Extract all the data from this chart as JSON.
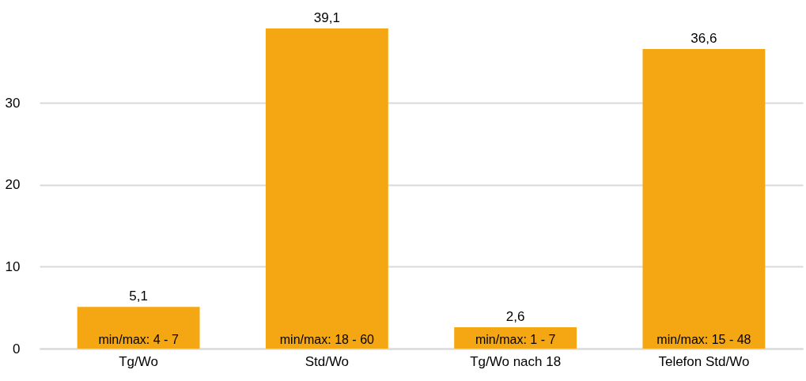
{
  "chart_data": {
    "type": "bar",
    "categories": [
      "Tg/Wo",
      "Std/Wo",
      "Tg/Wo nach 18",
      "Telefon Std/Wo"
    ],
    "values": [
      5.1,
      39.1,
      2.6,
      36.6
    ],
    "value_labels": [
      "5,1",
      "39,1",
      "2,6",
      "36,6"
    ],
    "color": "#f4a712",
    "ylim": [
      0,
      39.1
    ],
    "yticks": [
      0,
      10,
      20,
      30
    ],
    "grid": "y",
    "annotations": [
      {
        "text": "min/max: 4 - 7",
        "x": "Tg/Wo",
        "y": 0
      },
      {
        "text": "min/max: 18 - 60",
        "x": "Std/Wo",
        "y": 0
      },
      {
        "text": "min/max: 1 - 7",
        "x": "Tg/Wo nach 18",
        "y": 0
      },
      {
        "text": "min/max: 15 - 48",
        "x": "Telefon Std/Wo",
        "y": 0
      }
    ]
  }
}
